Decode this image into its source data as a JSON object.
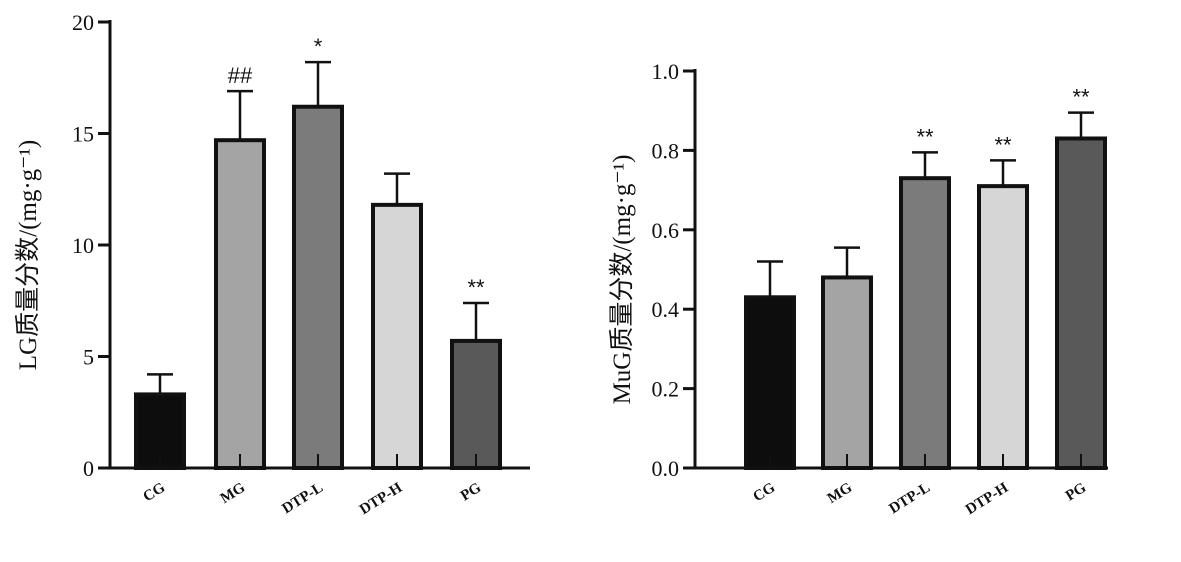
{
  "chart_data": [
    {
      "type": "bar",
      "ylabel": "LG质量分数/(mg·g⁻¹)",
      "ylim": [
        0,
        20
      ],
      "yticks": [
        0,
        5,
        10,
        15,
        20
      ],
      "categories": [
        "CG",
        "MG",
        "DTP-L",
        "DTP-H",
        "PG"
      ],
      "values": [
        3.3,
        14.7,
        16.2,
        11.8,
        5.7
      ],
      "errors": [
        0.9,
        2.2,
        2.0,
        1.4,
        1.7
      ],
      "annotations": [
        "",
        "##",
        "*",
        "",
        "**"
      ],
      "colors": [
        "#0d0d0d",
        "#a4a4a4",
        "#7b7b7b",
        "#d6d6d6",
        "#595959"
      ]
    },
    {
      "type": "bar",
      "ylabel": "MuG质量分数/(mg·g⁻¹)",
      "ylim": [
        0,
        1.0
      ],
      "yticks": [
        "0.0",
        "0.2",
        "0.4",
        "0.6",
        "0.8",
        "1.0"
      ],
      "categories": [
        "CG",
        "MG",
        "DTP-L",
        "DTP-H",
        "PG"
      ],
      "values": [
        0.43,
        0.48,
        0.73,
        0.71,
        0.83
      ],
      "errors": [
        0.09,
        0.075,
        0.065,
        0.065,
        0.065
      ],
      "annotations": [
        "",
        "",
        "**",
        "**",
        "**"
      ],
      "colors": [
        "#0d0d0d",
        "#a4a4a4",
        "#7b7b7b",
        "#d6d6d6",
        "#595959"
      ]
    }
  ]
}
